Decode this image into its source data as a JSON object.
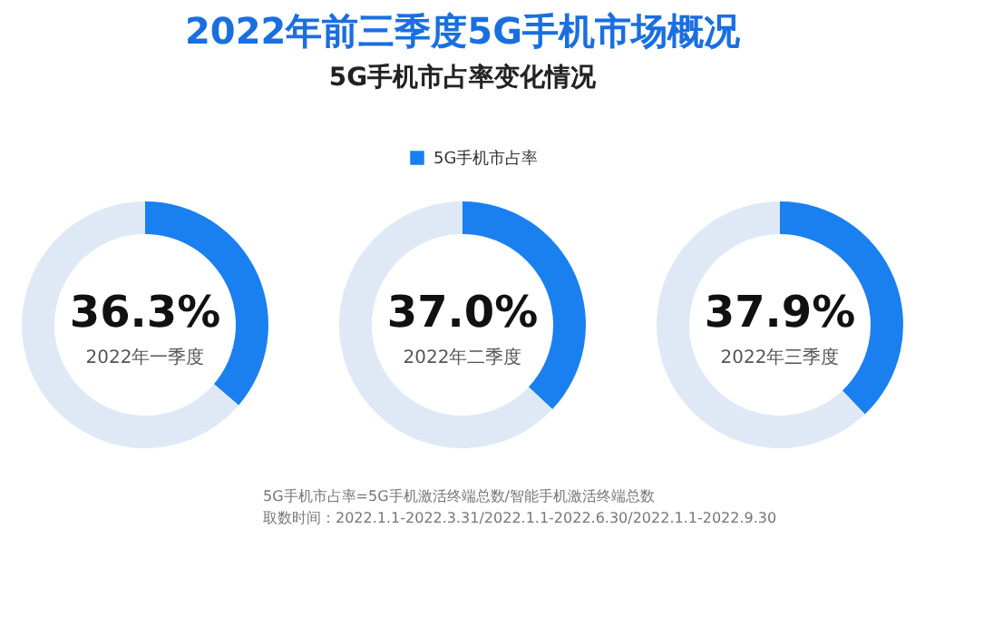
{
  "chart_data": [
    {
      "type": "donut",
      "categories": [
        null,
        null
      ],
      "values": [
        36.3,
        63.7
      ],
      "colors": [
        "#1a80f0",
        "#dfe9f6"
      ],
      "value_labels": [
        "36.3%",
        null
      ],
      "xlabel": "2022年一季度"
    },
    {
      "type": "donut",
      "title": "2022年前三季度5G手机市场概况",
      "subtitle": "5G手机市占率变化情况",
      "legend": "top",
      "categories": [
        "5G手机市占率",
        null
      ],
      "values": [
        37.0,
        63.0
      ],
      "colors": [
        "#1a80f0",
        "#dfe9f6"
      ],
      "value_labels": [
        "37.0%",
        null
      ],
      "xlabel": "2022年二季度",
      "annotations": [
        "5G手机市占率=5G手机激活终端总数/智能手机激活终端总数",
        "取数时间：2022.1.1-2022.3.31/2022.1.1-2022.6.30/2022.1.1-2022.9.30"
      ]
    },
    {
      "type": "donut",
      "categories": [
        null,
        null
      ],
      "values": [
        37.9,
        62.1
      ],
      "colors": [
        "#1a80f0",
        "#dfe9f6"
      ],
      "value_labels": [
        "37.9%",
        null
      ],
      "xlabel": "2022年三季度"
    }
  ]
}
